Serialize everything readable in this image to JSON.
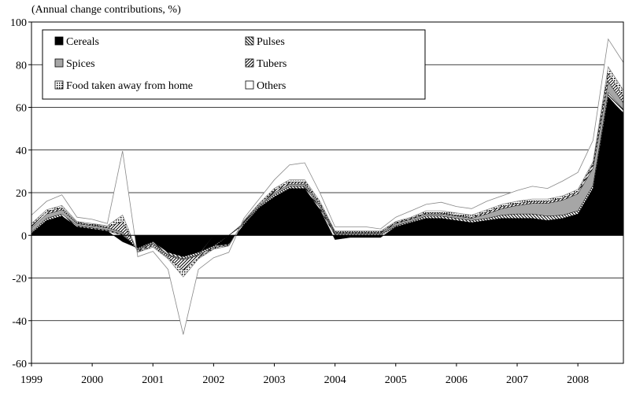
{
  "chart_data": {
    "type": "area",
    "stacked": true,
    "unit_label": "(Annual change contributions, %)",
    "ylim": [
      -60,
      100
    ],
    "yticks": [
      -60,
      -40,
      -20,
      0,
      20,
      40,
      60,
      80,
      100
    ],
    "xlim": [
      1999.0,
      2008.75
    ],
    "xticks": [
      {
        "x": 1999,
        "label": "1999"
      },
      {
        "x": 2000,
        "label": "2000"
      },
      {
        "x": 2001,
        "label": "2001"
      },
      {
        "x": 2002,
        "label": "2002"
      },
      {
        "x": 2003,
        "label": "2003"
      },
      {
        "x": 2004,
        "label": "2004"
      },
      {
        "x": 2005,
        "label": "2005"
      },
      {
        "x": 2006,
        "label": "2006"
      },
      {
        "x": 2007,
        "label": "2007"
      },
      {
        "x": 2008,
        "label": "2008"
      }
    ],
    "grid": true,
    "legend_position": "top-left",
    "x": [
      1999.0,
      1999.25,
      1999.5,
      1999.75,
      2000.0,
      2000.25,
      2000.5,
      2000.75,
      2001.0,
      2001.25,
      2001.5,
      2001.75,
      2002.0,
      2002.25,
      2002.5,
      2002.75,
      2003.0,
      2003.25,
      2003.5,
      2003.75,
      2004.0,
      2004.25,
      2004.5,
      2004.75,
      2005.0,
      2005.25,
      2005.5,
      2005.75,
      2006.0,
      2006.25,
      2006.5,
      2006.75,
      2007.0,
      2007.25,
      2007.5,
      2007.75,
      2008.0,
      2008.25,
      2008.5,
      2008.75
    ],
    "series": [
      {
        "name": "Cereals",
        "color": "#000000",
        "pattern": "solid",
        "values": [
          1,
          7,
          9,
          4,
          3,
          2,
          -3,
          -6,
          -3,
          -8,
          -10,
          -8,
          -5,
          -4,
          5,
          13,
          18,
          22,
          22,
          12,
          -2,
          -1,
          -1,
          -1,
          4,
          6,
          8,
          8,
          7,
          6,
          7,
          8,
          8,
          8,
          7,
          8,
          10,
          22,
          65,
          57
        ]
      },
      {
        "name": "Pulses",
        "color": "#000000",
        "pattern": "diag-back",
        "values": [
          0.5,
          1,
          1,
          0.5,
          0.5,
          0.5,
          0.5,
          -0.5,
          -0.5,
          -1,
          -1,
          -1,
          -0.5,
          0,
          0.5,
          0.5,
          1,
          1,
          1,
          1,
          0.5,
          0.5,
          0.5,
          0.5,
          0.5,
          0.5,
          1,
          1,
          1,
          1,
          1,
          1.5,
          2,
          2,
          2,
          1.5,
          1.5,
          1.5,
          2,
          2
        ]
      },
      {
        "name": "Spices",
        "color": "#a6a6a6",
        "pattern": "solid",
        "values": [
          2,
          2,
          2,
          1,
          1,
          1,
          1,
          -0.5,
          -0.5,
          -0.5,
          -0.5,
          -0.5,
          0,
          0,
          0.5,
          0.5,
          1,
          1,
          1,
          1,
          0.5,
          0.5,
          0.5,
          0.5,
          1,
          1,
          1,
          1,
          1,
          1,
          2,
          3,
          4,
          5,
          6,
          7,
          8,
          8,
          5,
          3
        ]
      },
      {
        "name": "Tubers",
        "color": "#000000",
        "pattern": "diag-fwd",
        "values": [
          1,
          1,
          1,
          0.5,
          0.5,
          0.5,
          5,
          -0.5,
          -1,
          -1,
          -5,
          -1,
          -0.5,
          -0.5,
          0.5,
          0.5,
          1,
          1,
          1,
          1,
          0.5,
          0.5,
          0.5,
          0.5,
          0.5,
          0.5,
          0.5,
          0.5,
          0.5,
          0.5,
          1,
          1,
          1,
          1,
          1,
          1,
          1,
          2,
          4,
          3
        ]
      },
      {
        "name": "Food taken away from home",
        "color": "#000000",
        "pattern": "dots",
        "values": [
          1,
          1,
          1,
          0.5,
          0.5,
          0.5,
          3,
          -0.5,
          -0.5,
          -0.5,
          -3,
          -0.5,
          -0.5,
          -0.5,
          0.5,
          0.5,
          1,
          1,
          1,
          1,
          0.5,
          0.5,
          0.5,
          0.5,
          0.5,
          0.5,
          1,
          1,
          1,
          1,
          1,
          1,
          1,
          1,
          1,
          1,
          1,
          1,
          3,
          3
        ]
      },
      {
        "name": "Others",
        "color": "#ffffff",
        "pattern": "white",
        "values": [
          4,
          4,
          5,
          2,
          2,
          1,
          30,
          -2,
          -2,
          -5,
          -27,
          -5,
          -4,
          -3,
          1,
          2,
          4,
          7,
          8,
          4,
          2,
          2,
          2,
          1,
          2,
          3,
          3,
          4,
          3,
          3,
          4,
          4,
          5,
          6,
          5,
          7,
          8,
          10,
          13,
          13
        ]
      }
    ]
  }
}
